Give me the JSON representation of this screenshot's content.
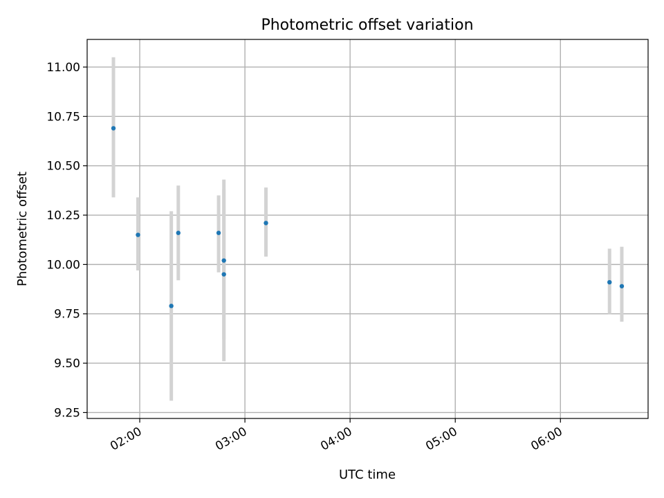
{
  "chart_data": {
    "type": "scatter",
    "title": "Photometric offset variation",
    "xlabel": "UTC time",
    "ylabel": "Photometric offset",
    "x_ticks": [
      "02:00",
      "03:00",
      "04:00",
      "05:00",
      "06:00"
    ],
    "y_ticks": [
      "9.25",
      "9.50",
      "9.75",
      "10.00",
      "10.25",
      "10.50",
      "10.75",
      "11.00"
    ],
    "xlim": [
      "01:30",
      "06:50"
    ],
    "ylim": [
      9.22,
      11.14
    ],
    "grid": true,
    "marker_color": "#1f77b4",
    "errorbar_color": "#d3d3d3",
    "points": [
      {
        "time": "01:45",
        "y": 10.69,
        "ylow": 10.34,
        "yhigh": 11.05
      },
      {
        "time": "01:59",
        "y": 10.15,
        "ylow": 9.97,
        "yhigh": 10.34
      },
      {
        "time": "02:18",
        "y": 9.79,
        "ylow": 9.31,
        "yhigh": 10.27
      },
      {
        "time": "02:22",
        "y": 10.16,
        "ylow": 9.92,
        "yhigh": 10.4
      },
      {
        "time": "02:45",
        "y": 10.16,
        "ylow": 9.96,
        "yhigh": 10.35
      },
      {
        "time": "02:48",
        "y": 10.02,
        "ylow": 9.62,
        "yhigh": 10.43
      },
      {
        "time": "02:48",
        "y": 9.95,
        "ylow": 9.51,
        "yhigh": 10.38
      },
      {
        "time": "03:12",
        "y": 10.21,
        "ylow": 10.04,
        "yhigh": 10.39
      },
      {
        "time": "06:28",
        "y": 9.91,
        "ylow": 9.75,
        "yhigh": 10.08
      },
      {
        "time": "06:35",
        "y": 9.89,
        "ylow": 9.71,
        "yhigh": 10.09
      }
    ]
  }
}
